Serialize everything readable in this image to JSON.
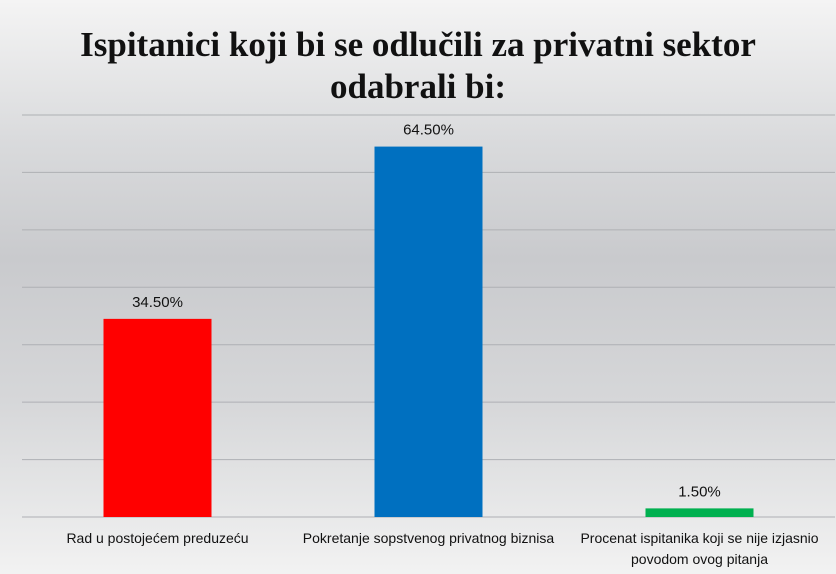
{
  "chart_data": {
    "type": "bar",
    "title": "Ispitanici koji bi se odlučili za privatni sektor odabrali bi:",
    "categories": [
      "Rad u postojećem preduzeću",
      "Pokretanje sopstvenog privatnog biznisa",
      "Procenat ispitanika koji se nije izjasnio povodom ovog pitanja"
    ],
    "values": [
      34.5,
      64.5,
      1.5
    ],
    "value_labels": [
      "34.50%",
      "64.50%",
      "1.50%"
    ],
    "colors": [
      "#ff0000",
      "#0070c0",
      "#00b050"
    ],
    "ylim": [
      0,
      70
    ],
    "yticks": [
      0,
      10,
      20,
      30,
      40,
      50,
      60,
      70
    ],
    "grid": true
  }
}
